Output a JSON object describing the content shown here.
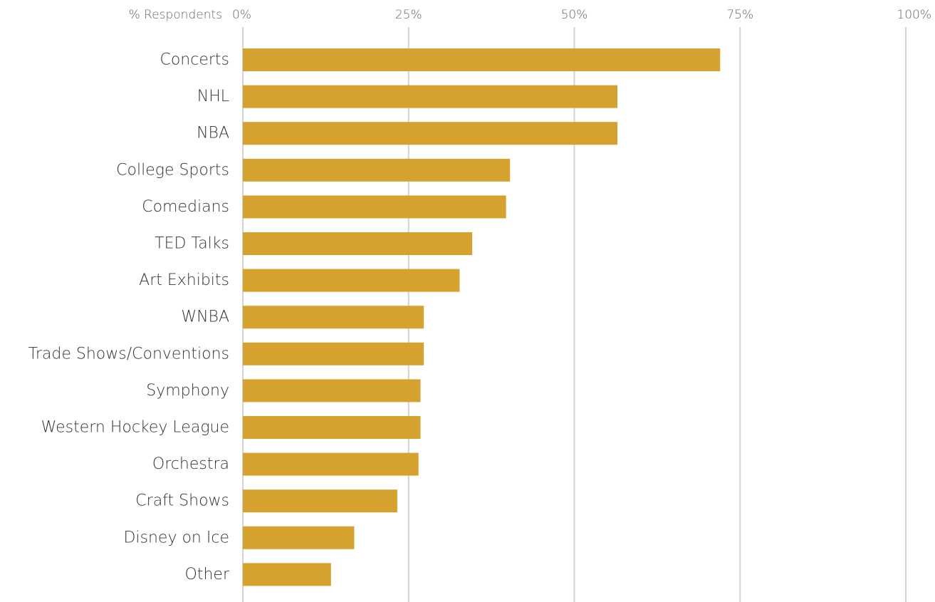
{
  "chart_data": {
    "type": "bar",
    "orientation": "horizontal",
    "axis_prefix": "% Respondents",
    "xlim": [
      0,
      100
    ],
    "ticks": [
      0,
      25,
      50,
      75,
      100
    ],
    "tick_labels": [
      "0%",
      "25%",
      "50%",
      "75%",
      "100%"
    ],
    "grid": true,
    "categories": [
      "Concerts",
      "NHL",
      "NBA",
      "College Sports",
      "Comedians",
      "TED Talks",
      "Art Exhibits",
      "WNBA",
      "Trade Shows/Conventions",
      "Symphony",
      "Western Hockey League",
      "Orchestra",
      "Craft Shows",
      "Disney on Ice",
      "Other"
    ],
    "values": [
      72,
      56.5,
      56.5,
      40.3,
      39.7,
      34.6,
      32.7,
      27.3,
      27.3,
      26.8,
      26.8,
      26.5,
      23.3,
      16.8,
      13.3
    ],
    "bar_color": "#D6A22F",
    "grid_color": "#D3D3D3"
  }
}
